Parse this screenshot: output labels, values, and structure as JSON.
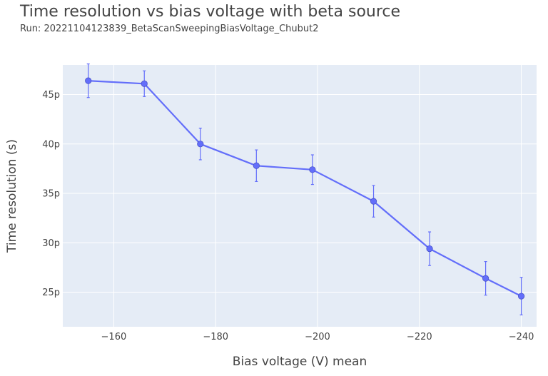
{
  "title": "Time resolution vs bias voltage with beta source",
  "subtitle": "Run: 20221104123839_BetaScanSweepingBiasVoltage_Chubut2",
  "colors": {
    "plot_bg": "#E5ECF6",
    "grid": "#FFFFFF",
    "series": "#636EFA",
    "text": "#444444"
  },
  "chart_data": {
    "type": "line",
    "title": "Time resolution vs bias voltage with beta source",
    "subtitle": "Run: 20221104123839_BetaScanSweepingBiasVoltage_Chubut2",
    "xlabel": "Bias voltage (V) mean",
    "ylabel": "Time resolution (s)",
    "x_reversed": true,
    "xlim": [
      -150,
      -243
    ],
    "ylim": [
      2.15e-11,
      4.8e-11
    ],
    "grid": true,
    "x_ticks": [
      -160,
      -180,
      -200,
      -220,
      -240
    ],
    "x_tick_labels": [
      "−160",
      "−180",
      "−200",
      "−220",
      "−240"
    ],
    "y_ticks": [
      2.5e-11,
      3e-11,
      3.5e-11,
      4e-11,
      4.5e-11
    ],
    "y_tick_labels": [
      "25p",
      "30p",
      "35p",
      "40p",
      "45p"
    ],
    "series": [
      {
        "x": [
          -155,
          -166,
          -177,
          -188,
          -199,
          -211,
          -222,
          -233,
          -240
        ],
        "y": [
          4.64e-11,
          4.61e-11,
          4e-11,
          3.78e-11,
          3.74e-11,
          3.42e-11,
          2.94e-11,
          2.64e-11,
          2.46e-11
        ],
        "error": [
          1.7e-12,
          1.3e-12,
          1.6e-12,
          1.6e-12,
          1.5e-12,
          1.6e-12,
          1.7e-12,
          1.7e-12,
          1.9e-12
        ]
      }
    ]
  }
}
